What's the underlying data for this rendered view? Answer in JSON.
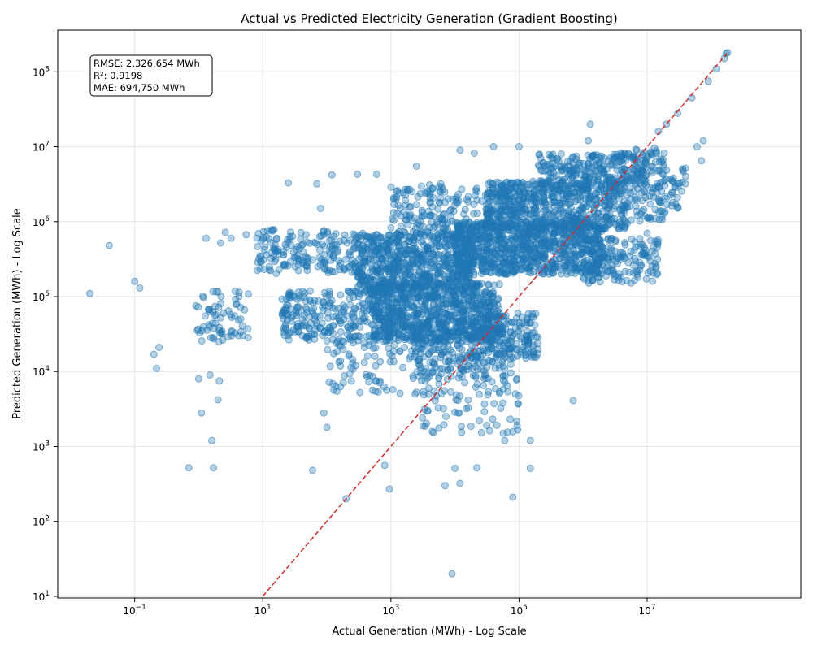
{
  "chart_data": {
    "type": "scatter",
    "title": "Actual vs Predicted Electricity Generation (Gradient Boosting)",
    "xlabel": "Actual Generation (MWh) - Log Scale",
    "ylabel": "Predicted Generation (MWh) - Log Scale",
    "xscale": "log",
    "yscale": "log",
    "xlim": [
      0.0063,
      2500000000.0
    ],
    "ylim": [
      9.5,
      360000000.0
    ],
    "x_ticks": [
      {
        "value": 0.1,
        "base": "10",
        "exp": "−1"
      },
      {
        "value": 10,
        "base": "10",
        "exp": "1"
      },
      {
        "value": 1000,
        "base": "10",
        "exp": "3"
      },
      {
        "value": 100000,
        "base": "10",
        "exp": "5"
      },
      {
        "value": 10000000,
        "base": "10",
        "exp": "7"
      }
    ],
    "y_ticks": [
      {
        "value": 10,
        "base": "10",
        "exp": "1"
      },
      {
        "value": 100,
        "base": "10",
        "exp": "2"
      },
      {
        "value": 1000,
        "base": "10",
        "exp": "3"
      },
      {
        "value": 10000,
        "base": "10",
        "exp": "4"
      },
      {
        "value": 100000,
        "base": "10",
        "exp": "5"
      },
      {
        "value": 1000000,
        "base": "10",
        "exp": "6"
      },
      {
        "value": 10000000,
        "base": "10",
        "exp": "7"
      },
      {
        "value": 100000000,
        "base": "10",
        "exp": "8"
      }
    ],
    "grid": true,
    "reference_line": {
      "label": "",
      "style": "dashed",
      "color": "#d62728",
      "x": [
        10,
        180000000.0
      ],
      "y": [
        10,
        180000000.0
      ]
    },
    "stats": {
      "rmse": "RMSE: 2,326,654 MWh",
      "r2": "R²: 0.9198",
      "mae": "MAE: 694,750 MWh"
    },
    "point_color": "#1f77b4",
    "series": [
      {
        "points": [
          [
            0.02,
            110000
          ],
          [
            0.04,
            480000
          ],
          [
            0.1,
            160000
          ],
          [
            0.12,
            130000
          ],
          [
            0.2,
            17000
          ],
          [
            0.22,
            11000
          ],
          [
            0.24,
            21000
          ],
          [
            0.7,
            520
          ],
          [
            1.0,
            8000
          ],
          [
            1.1,
            2800
          ],
          [
            1.3,
            600000
          ],
          [
            1.5,
            9000
          ],
          [
            1.6,
            1200
          ],
          [
            1.7,
            520
          ],
          [
            2.0,
            4200
          ],
          [
            2.1,
            7500
          ],
          [
            2.2,
            520000
          ],
          [
            2.6,
            720000
          ],
          [
            3.2,
            600000
          ],
          [
            5.5,
            670000
          ],
          [
            18,
            230000
          ],
          [
            25,
            3300000
          ],
          [
            60,
            480
          ],
          [
            70,
            3200000
          ],
          [
            80,
            1500000
          ],
          [
            90,
            2800
          ],
          [
            100,
            1800
          ],
          [
            120,
            4200000
          ],
          [
            200,
            200
          ],
          [
            300,
            4300000
          ],
          [
            600,
            4300000
          ],
          [
            800,
            560
          ],
          [
            950,
            270
          ],
          [
            2500,
            5500000
          ],
          [
            4000,
            3100000
          ],
          [
            6000,
            3200000
          ],
          [
            7000,
            300
          ],
          [
            9000,
            20
          ],
          [
            10000,
            510
          ],
          [
            12000,
            320
          ],
          [
            12000,
            9000000
          ],
          [
            22000,
            520
          ],
          [
            20000,
            8200000
          ],
          [
            40000,
            10000000
          ],
          [
            60000,
            1200
          ],
          [
            80000,
            210
          ],
          [
            150000,
            510
          ],
          [
            150000,
            1200
          ],
          [
            100000,
            10000000
          ],
          [
            300000,
            5800000
          ],
          [
            700000,
            4100
          ],
          [
            1300000,
            20000000
          ],
          [
            1200000,
            12000000
          ],
          [
            7000000,
            1200000
          ],
          [
            10000000,
            700000
          ],
          [
            40000000,
            4000000
          ],
          [
            60000000,
            10000000
          ],
          [
            70000000,
            6500000
          ],
          [
            75000000,
            12000000
          ],
          [
            90000000,
            75000000
          ],
          [
            120000000,
            110000000
          ],
          [
            160000000,
            150000000
          ],
          [
            180000000,
            180000000
          ],
          [
            170000000,
            175000000
          ],
          [
            50000000,
            45000000
          ],
          [
            30000000,
            28000000
          ],
          [
            20000000,
            20000000
          ],
          [
            15000000,
            16000000
          ],
          [
            25000000,
            1800000
          ],
          [
            12000000,
            5500000
          ]
        ]
      },
      {
        "clusters": [
          {
            "x": [
              0.9,
              6
            ],
            "y": [
              25000.0,
              120000.0
            ],
            "n": 70
          },
          {
            "x": [
              8,
              300
            ],
            "y": [
              200000.0,
              800000.0
            ],
            "n": 180
          },
          {
            "x": [
              20,
              1000
            ],
            "y": [
              25000.0,
              120000.0
            ],
            "n": 260
          },
          {
            "x": [
              100,
              3000
            ],
            "y": [
              5000.0,
              30000.0
            ],
            "n": 90
          },
          {
            "x": [
              300,
              20000
            ],
            "y": [
              120000.0,
              700000.0
            ],
            "n": 700
          },
          {
            "x": [
              500,
              50000
            ],
            "y": [
              25000.0,
              150000.0
            ],
            "n": 800
          },
          {
            "x": [
              2000,
              80000
            ],
            "y": [
              8000.0,
              40000.0
            ],
            "n": 250
          },
          {
            "x": [
              3000,
              100000
            ],
            "y": [
              1500.0,
              8000.0
            ],
            "n": 80
          },
          {
            "x": [
              1000,
              80000
            ],
            "y": [
              700000.0,
              3000000.0
            ],
            "n": 200
          },
          {
            "x": [
              10000,
              2000000
            ],
            "y": [
              200000.0,
              1000000.0
            ],
            "n": 900
          },
          {
            "x": [
              30000,
              5000000
            ],
            "y": [
              800000.0,
              3500000.0
            ],
            "n": 600
          },
          {
            "x": [
              200000,
              10000000
            ],
            "y": [
              3000000.0,
              8000000.0
            ],
            "n": 250
          },
          {
            "x": [
              1000000,
              15000000
            ],
            "y": [
              150000.0,
              600000.0
            ],
            "n": 160
          },
          {
            "x": [
              3000000,
              20000000
            ],
            "y": [
              1000000.0,
              10000000.0
            ],
            "n": 120
          },
          {
            "x": [
              15000000,
              40000000
            ],
            "y": [
              1500000.0,
              6000000.0
            ],
            "n": 40
          },
          {
            "x": [
              20000,
              200000
            ],
            "y": [
              15000.0,
              60000.0
            ],
            "n": 150
          }
        ]
      }
    ]
  }
}
